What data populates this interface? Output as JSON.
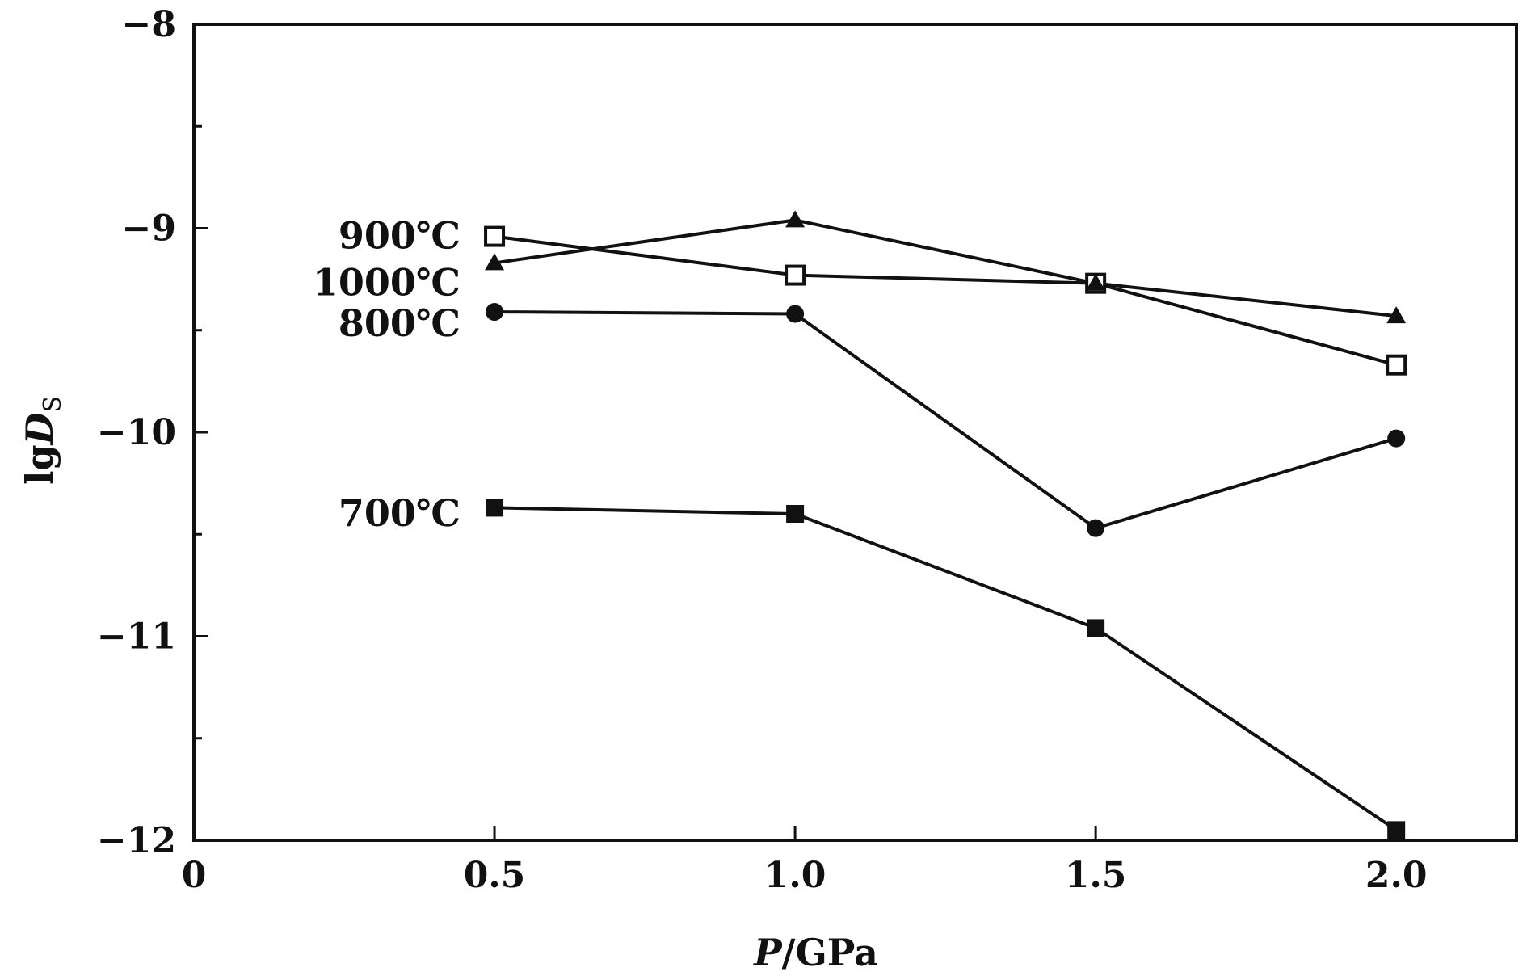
{
  "chart_data": {
    "type": "line",
    "x": [
      0.5,
      1.0,
      1.5,
      2.0
    ],
    "series": [
      {
        "name": "900℃",
        "marker": "open-square",
        "values": [
          -9.04,
          -9.23,
          -9.27,
          -9.67
        ]
      },
      {
        "name": "1000℃",
        "marker": "filled-triangle",
        "values": [
          -9.17,
          -8.96,
          -9.27,
          -9.43
        ]
      },
      {
        "name": "800℃",
        "marker": "filled-circle",
        "values": [
          -9.41,
          -9.42,
          -10.47,
          -10.03
        ]
      },
      {
        "name": "700℃",
        "marker": "filled-square",
        "values": [
          -10.37,
          -10.4,
          -10.96,
          -11.95
        ]
      }
    ],
    "xlim": [
      0,
      2.2
    ],
    "ylim": [
      -12,
      -8
    ],
    "xticks": [
      0,
      0.5,
      1.0,
      1.5,
      2.0
    ],
    "xtick_labels": [
      "0",
      "0.5",
      "1.0",
      "1.5",
      "2.0"
    ],
    "yticks": [
      -12,
      -11,
      -10,
      -9,
      -8
    ],
    "ytick_labels": [
      "−12",
      "−11",
      "−10",
      "−9",
      "−8"
    ],
    "yminor_step": 0.5,
    "xlabel": {
      "italic": "P",
      "rest": "/GPa"
    },
    "ylabel": {
      "main": "lg",
      "italic": "D",
      "sub": "S"
    },
    "grid": false,
    "legend": "none",
    "line_color": "#111111"
  }
}
